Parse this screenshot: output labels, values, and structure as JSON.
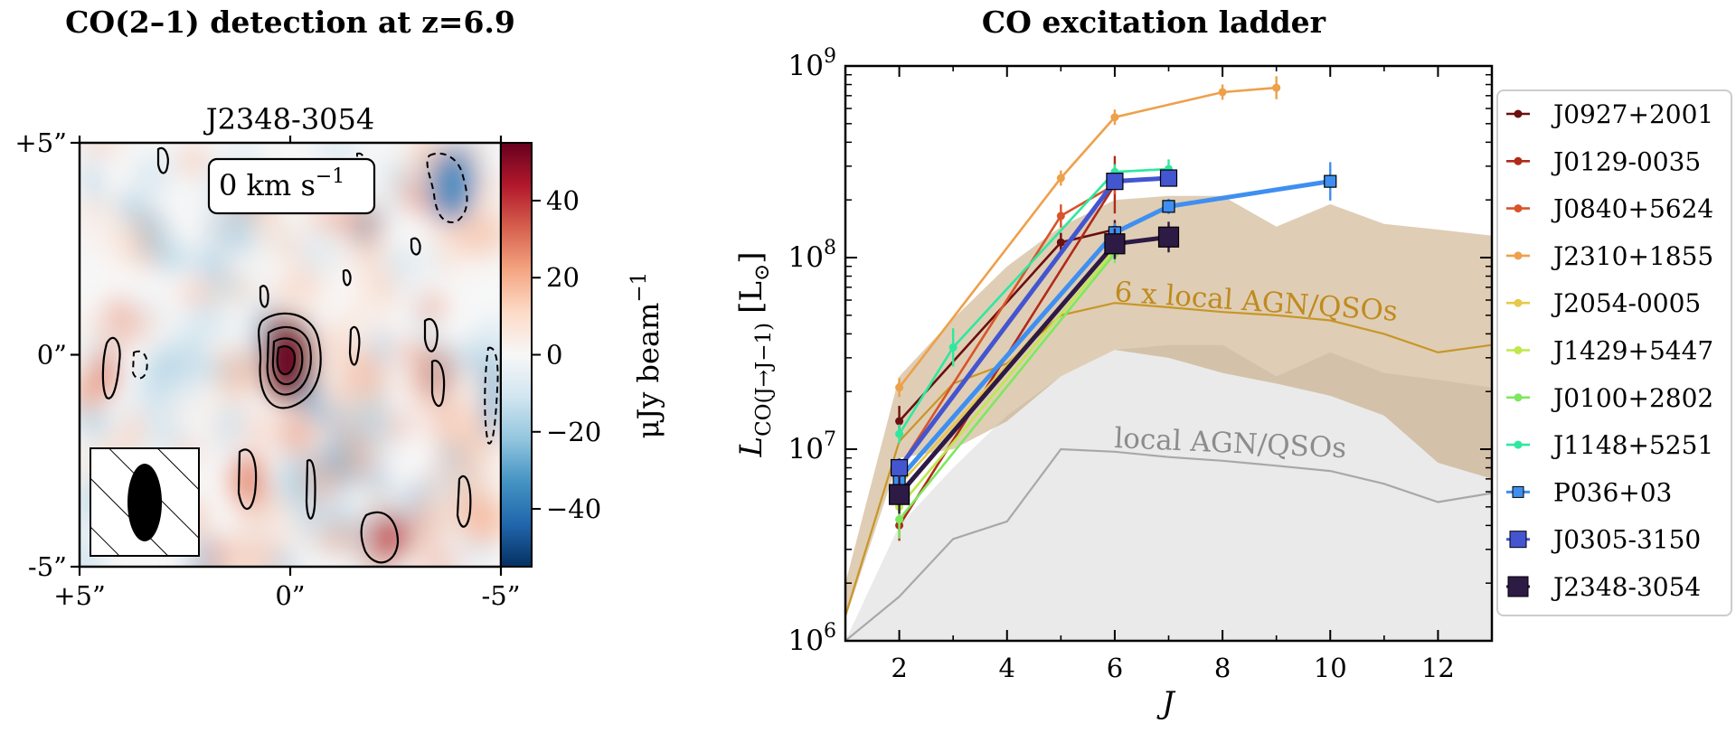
{
  "left_panel": {
    "title": "CO(2–1) detection at z=6.9",
    "source": "J2348-3054",
    "velocity": "0 km s",
    "velocity_exp": "−1",
    "x_ticks": [
      "+5”",
      "0”",
      "-5”"
    ],
    "y_ticks": [
      "+5”",
      "0”",
      "-5”"
    ],
    "colorbar": {
      "label": "μJy beam",
      "label_exp": "−1",
      "range": [
        -55,
        55
      ],
      "ticks": [
        40,
        20,
        0,
        -20,
        -40
      ],
      "tick_labels": [
        "40",
        "20",
        "0",
        "−20",
        "−40"
      ],
      "cmap": [
        "#053061",
        "#2166ac",
        "#4393c3",
        "#92c5de",
        "#d1e5f0",
        "#f7f7f7",
        "#fddbc7",
        "#f4a582",
        "#d6604d",
        "#b2182b",
        "#67001f"
      ]
    }
  },
  "chart_data": {
    "type": "line",
    "title": "CO excitation ladder",
    "xlabel": "J",
    "ylabel": "L",
    "ylabel_sub": "CO(J→J−1)",
    "ylabel_unit": "[L",
    "ylabel_unit_sub": "⊙",
    "ylabel_unit_end": "]",
    "xlim": [
      1,
      13
    ],
    "ylim": [
      1000000,
      1000000000
    ],
    "yscale": "log",
    "x_ticks": [
      2,
      4,
      6,
      8,
      10,
      12
    ],
    "x_tick_labels": [
      "2",
      "4",
      "6",
      "8",
      "10",
      "12"
    ],
    "y_ticks": [
      1000000,
      10000000,
      100000000,
      1000000000
    ],
    "y_tick_labels": [
      {
        "base": "10",
        "exp": "6"
      },
      {
        "base": "10",
        "exp": "7"
      },
      {
        "base": "10",
        "exp": "8"
      },
      {
        "base": "10",
        "exp": "9"
      }
    ],
    "legend_position": "outside-right",
    "series": [
      {
        "name": "J0927+2001",
        "color": "#6b0f0f",
        "marker": "dot",
        "x": [
          2,
          5,
          6
        ],
        "y": [
          14000000,
          120000000,
          140000000
        ],
        "err": [
          0.08,
          0.05,
          0.05
        ]
      },
      {
        "name": "J0129-0035",
        "color": "#b02a1a",
        "marker": "dot",
        "x": [
          2,
          6
        ],
        "y": [
          4000000,
          240000000
        ],
        "err": [
          0.08,
          0.15
        ]
      },
      {
        "name": "J0840+5624",
        "color": "#d9542a",
        "marker": "dot",
        "x": [
          2,
          5,
          6
        ],
        "y": [
          8000000,
          165000000,
          240000000
        ],
        "err": [
          0.05,
          0.06,
          0.05
        ]
      },
      {
        "name": "J2310+1855",
        "color": "#eea04a",
        "marker": "dot",
        "x": [
          2,
          5,
          6,
          8,
          9
        ],
        "y": [
          21000000,
          260000000,
          540000000,
          730000000,
          770000000
        ],
        "err": [
          0.05,
          0.04,
          0.04,
          0.04,
          0.06
        ]
      },
      {
        "name": "J2054-0005",
        "color": "#e8c84a",
        "marker": "dot",
        "x": [
          2,
          6
        ],
        "y": [
          6500000,
          115000000
        ],
        "err": [
          0.06,
          0.05
        ]
      },
      {
        "name": "J1429+5447",
        "color": "#bfe84a",
        "marker": "dot",
        "x": [
          2,
          6
        ],
        "y": [
          5000000,
          110000000
        ],
        "err": [
          0.1,
          0.05
        ]
      },
      {
        "name": "J0100+2802",
        "color": "#7de85e",
        "marker": "dot",
        "x": [
          2,
          6
        ],
        "y": [
          4300000,
          105000000
        ],
        "err": [
          0.1,
          0.05
        ]
      },
      {
        "name": "J1148+5251",
        "color": "#2ee8a0",
        "marker": "dot",
        "x": [
          2,
          3,
          6,
          7
        ],
        "y": [
          12000000,
          34000000,
          280000000,
          290000000
        ],
        "err": [
          0.05,
          0.1,
          0.04,
          0.05
        ]
      },
      {
        "name": "P036+03",
        "color": "#3f8ff0",
        "marker": "square",
        "x": [
          2,
          6,
          7,
          10
        ],
        "y": [
          7000000,
          135000000,
          185000000,
          250000000
        ],
        "err": [
          0.05,
          0.05,
          0.04,
          0.1
        ]
      },
      {
        "name": "J0305-3150",
        "color": "#4455d0",
        "marker": "square-big",
        "x": [
          2,
          6,
          7
        ],
        "y": [
          8000000,
          250000000,
          260000000
        ],
        "err": [
          0.05,
          0.04,
          0.04
        ]
      },
      {
        "name": "J2348-3054",
        "color": "#2d1a45",
        "marker": "square-xl",
        "x": [
          2,
          6,
          7
        ],
        "y": [
          5800000,
          118000000,
          128000000
        ],
        "err": [
          0.1,
          0.08,
          0.08
        ]
      }
    ],
    "bands": [
      {
        "name": "6 x local AGN/QSOs",
        "color": "#b8925a",
        "line_color": "#c89628",
        "x": [
          1,
          2,
          3,
          4,
          5,
          6,
          7,
          8,
          9,
          10,
          11,
          12,
          13
        ],
        "lower": [
          1300000,
          9000000,
          10000000,
          14000000,
          24000000,
          33000000,
          30000000,
          25000000,
          22000000,
          19000000,
          15000000,
          8500000,
          7000000
        ],
        "median": [
          1350000,
          11000000,
          22000000,
          28000000,
          50000000,
          58000000,
          55000000,
          52000000,
          50000000,
          47000000,
          40000000,
          32000000,
          35000000
        ],
        "upper": [
          2000000,
          24000000,
          48000000,
          90000000,
          145000000,
          200000000,
          210000000,
          210000000,
          145000000,
          190000000,
          150000000,
          140000000,
          130000000
        ]
      },
      {
        "name": "local AGN/QSOs",
        "color": "#c8c8c8",
        "line_color": "#a8a8a8",
        "x": [
          1,
          2,
          3,
          4,
          5,
          6,
          7,
          8,
          9,
          10,
          11,
          12,
          13
        ],
        "lower": [
          1000000,
          1000000,
          1000000,
          1000000,
          1000000,
          1000000,
          1000000,
          1000000,
          1000000,
          1000000,
          1000000,
          1000000,
          1000000
        ],
        "median": [
          1000000,
          1700000,
          3400000,
          4200000,
          10000000,
          9700000,
          9100000,
          8700000,
          8200000,
          7700000,
          6600000,
          5300000,
          5900000
        ],
        "upper": [
          1000000,
          4000000,
          8000000,
          15000000,
          24000000,
          33000000,
          35000000,
          35000000,
          24000000,
          32000000,
          25000000,
          23000000,
          21000000
        ]
      }
    ]
  }
}
